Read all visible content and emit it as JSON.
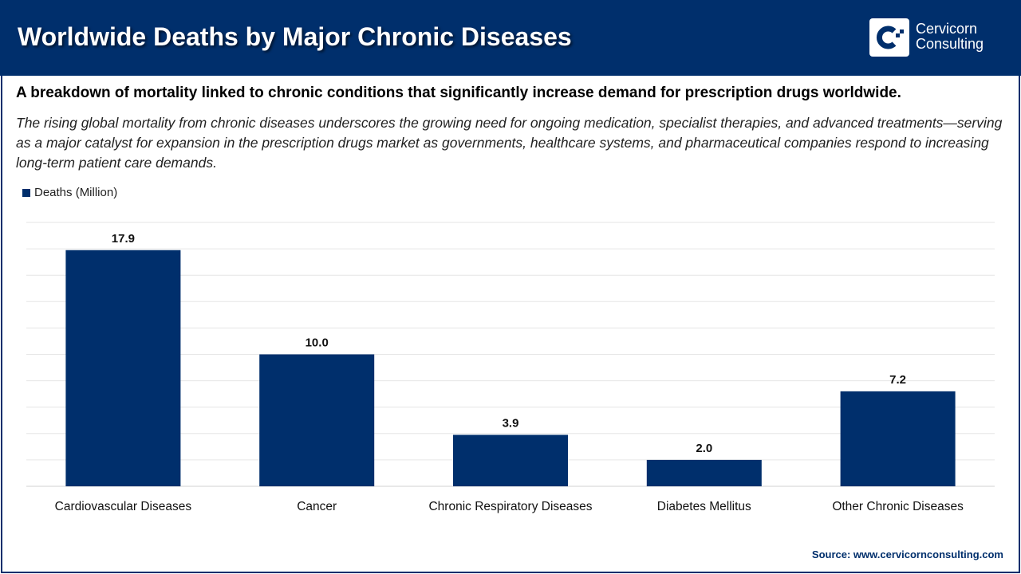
{
  "header": {
    "title": "Worldwide Deaths by Major Chronic Diseases",
    "brand": "Cervicorn Consulting",
    "brand_line1": "Cervicorn",
    "brand_line2": "Consulting"
  },
  "subtitle": "A breakdown of mortality linked to chronic conditions that significantly increase demand for prescription drugs worldwide.",
  "description": "The rising global mortality from chronic diseases underscores the growing need for ongoing medication, specialist therapies, and advanced treatments—serving as a major catalyst for expansion in the prescription drugs market as governments, healthcare systems, and pharmaceutical companies respond to increasing long-term patient care demands.",
  "source": "Source: www.cervicornconsulting.com",
  "colors": {
    "bar": "#002f6c",
    "header": "#002f6c",
    "grid": "#e6e6e6"
  },
  "chart_data": {
    "type": "bar",
    "categories": [
      "Cardiovascular Diseases",
      "Cancer",
      "Chronic Respiratory Diseases",
      "Diabetes Mellitus",
      "Other Chronic Diseases"
    ],
    "series": [
      {
        "name": "Deaths (Million)",
        "values": [
          17.9,
          10.0,
          3.9,
          2.0,
          7.2
        ]
      }
    ],
    "data_labels": [
      "17.9",
      "10.0",
      "3.9",
      "2.0",
      "7.2"
    ],
    "ylim": [
      0,
      20
    ],
    "grid": true,
    "grid_step": 2,
    "legend": "top-left",
    "xlabel": "",
    "ylabel": ""
  }
}
